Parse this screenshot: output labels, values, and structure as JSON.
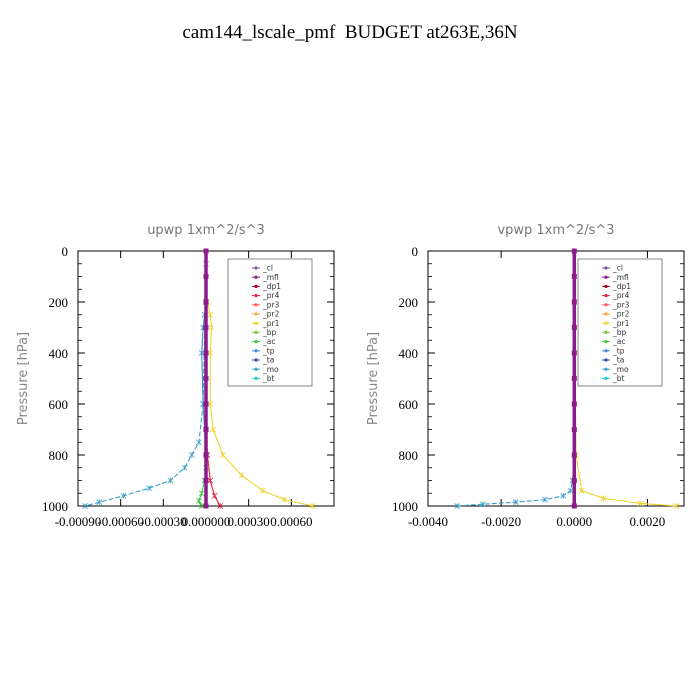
{
  "title": "cam144_lscale_pmf  BUDGET at263E,36N",
  "legend_entries": [
    {
      "name": "_cl",
      "color": "#7e4fa3"
    },
    {
      "name": "_mfl",
      "color": "#8b1a8b"
    },
    {
      "name": "_dp1",
      "color": "#a8001e"
    },
    {
      "name": "_pr4",
      "color": "#e4203c"
    },
    {
      "name": "_pr3",
      "color": "#ff5a5a"
    },
    {
      "name": "_pr2",
      "color": "#ffa640"
    },
    {
      "name": "_pr1",
      "color": "#f2d230"
    },
    {
      "name": "_bp",
      "color": "#7bc842"
    },
    {
      "name": "_ac",
      "color": "#3cc63c"
    },
    {
      "name": "_tp",
      "color": "#3a8ad0"
    },
    {
      "name": "_ta",
      "color": "#2a4fb0"
    },
    {
      "name": "_mo",
      "color": "#3aa0c8"
    },
    {
      "name": "_bt",
      "color": "#18d0e0"
    }
  ],
  "chart_data": [
    {
      "type": "line",
      "title": "upwp   1xm^2/s^3",
      "ylabel": "Pressure  [hPa]",
      "xlim": [
        -0.0009,
        0.0009
      ],
      "ylim": [
        1000,
        0
      ],
      "yticks": [
        0,
        200,
        400,
        600,
        800,
        1000
      ],
      "ytick_labels": [
        "0",
        "200",
        "400",
        "600",
        "800",
        "1000"
      ],
      "xticks": [
        -0.0009,
        -0.0006,
        -0.0003,
        0.0,
        0.0003,
        0.0006
      ],
      "xtick_labels": [
        "-0.00090",
        "-0.00060",
        "-0.00030",
        "0.000000",
        "0.00030",
        "0.00060"
      ],
      "legend_position": "top-right",
      "series": [
        {
          "name": "_mo",
          "x": [
            0,
            -2e-05,
            -5e-05,
            -0.0001,
            -0.00015,
            -0.00025,
            -0.0004,
            -0.00058,
            -0.00075,
            -0.00085
          ],
          "y": [
            50,
            600,
            750,
            800,
            850,
            900,
            930,
            960,
            985,
            1000
          ]
        },
        {
          "name": "_tp",
          "x": [
            0,
            -1e-05,
            -2e-05,
            -3e-05,
            -2e-05,
            0
          ],
          "y": [
            200,
            250,
            300,
            400,
            600,
            800
          ]
        },
        {
          "name": "_pr1",
          "x": [
            1e-05,
            3e-05,
            4e-05,
            3e-05,
            3e-05,
            5e-05,
            0.00012,
            0.00025,
            0.0004,
            0.00055,
            0.00075
          ],
          "y": [
            200,
            250,
            300,
            400,
            600,
            700,
            800,
            880,
            940,
            975,
            1000
          ]
        },
        {
          "name": "_pr4",
          "x": [
            0,
            1e-05,
            3e-05,
            6e-05,
            0.0001
          ],
          "y": [
            700,
            800,
            900,
            960,
            1000
          ]
        },
        {
          "name": "_ac",
          "x": [
            0,
            -1e-05,
            -3e-05,
            -5e-05,
            -3e-05
          ],
          "y": [
            850,
            900,
            950,
            980,
            1000
          ]
        },
        {
          "name": "_mfl",
          "x": [
            0,
            0,
            0,
            0,
            0,
            0,
            0,
            0,
            0,
            0,
            0
          ],
          "y": [
            0,
            100,
            200,
            300,
            400,
            500,
            600,
            700,
            800,
            900,
            1000
          ]
        }
      ]
    },
    {
      "type": "line",
      "title": "vpwp   1xm^2/s^3",
      "ylabel": "Pressure  [hPa]",
      "xlim": [
        -0.004,
        0.003
      ],
      "ylim": [
        1000,
        0
      ],
      "yticks": [
        0,
        200,
        400,
        600,
        800,
        1000
      ],
      "ytick_labels": [
        "0",
        "200",
        "400",
        "600",
        "800",
        "1000"
      ],
      "xticks": [
        -0.004,
        -0.002,
        0.0,
        0.002
      ],
      "xtick_labels": [
        "-0.0040",
        "-0.0020",
        "0.0000",
        "0.0020"
      ],
      "legend_position": "top-right",
      "series": [
        {
          "name": "_mo",
          "x": [
            0,
            -5e-05,
            -0.0001,
            -0.0003,
            -0.0008,
            -0.0016,
            -0.0025,
            -0.0032
          ],
          "y": [
            800,
            900,
            940,
            960,
            975,
            985,
            993,
            1000
          ]
        },
        {
          "name": "_pr1",
          "x": [
            0,
            2e-05,
            3e-05,
            5e-05,
            0.0002,
            0.0008,
            0.0018,
            0.0028
          ],
          "y": [
            200,
            400,
            600,
            800,
            940,
            970,
            990,
            1000
          ]
        },
        {
          "name": "_mfl",
          "x": [
            0,
            0,
            0,
            0,
            0,
            0,
            0,
            0,
            0,
            0,
            0
          ],
          "y": [
            0,
            100,
            200,
            300,
            400,
            500,
            600,
            700,
            800,
            900,
            1000
          ]
        }
      ]
    }
  ]
}
